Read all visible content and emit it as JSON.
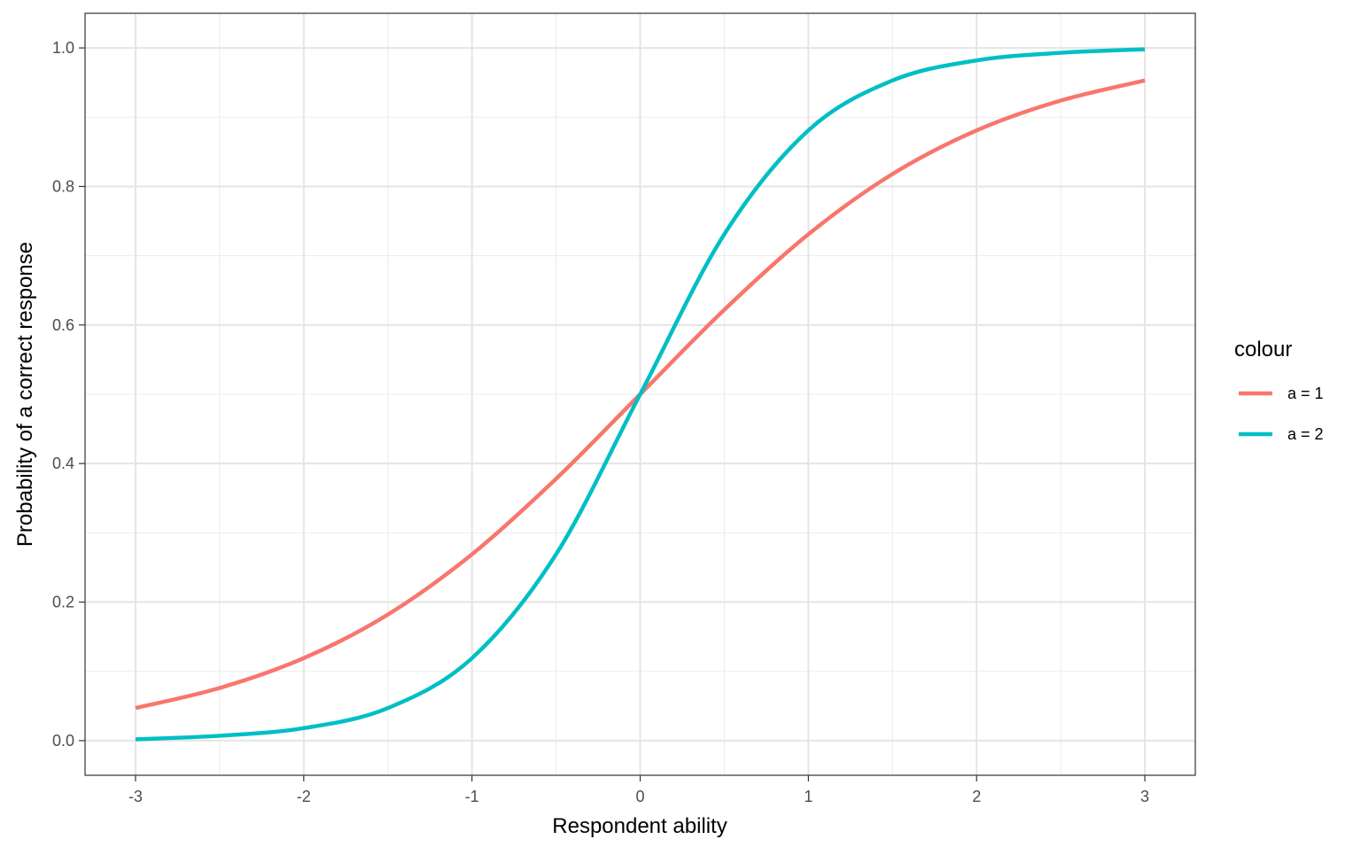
{
  "chart_data": {
    "type": "line",
    "xlabel": "Respondent ability",
    "ylabel": "Probability of a correct response",
    "xlim": [
      -3.3,
      3.3
    ],
    "ylim": [
      -0.05,
      1.05
    ],
    "x_ticks": [
      -3,
      -2,
      -1,
      0,
      1,
      2,
      3
    ],
    "x_tick_labels": [
      "-3",
      "-2",
      "-1",
      "0",
      "1",
      "2",
      "3"
    ],
    "y_ticks": [
      0.0,
      0.2,
      0.4,
      0.6,
      0.8,
      1.0
    ],
    "y_tick_labels": [
      "0.0",
      "0.2",
      "0.4",
      "0.6",
      "0.8",
      "1.0"
    ],
    "grid": true,
    "legend": {
      "title": "colour",
      "placement": "right"
    },
    "x": [
      -3.0,
      -2.5,
      -2.0,
      -1.5,
      -1.0,
      -0.5,
      0.0,
      0.5,
      1.0,
      1.5,
      2.0,
      2.5,
      3.0
    ],
    "series": [
      {
        "name": "a = 1",
        "color": "#F8766D",
        "values": [
          0.047,
          0.076,
          0.119,
          0.182,
          0.269,
          0.378,
          0.5,
          0.622,
          0.731,
          0.818,
          0.881,
          0.924,
          0.953
        ]
      },
      {
        "name": "a = 2",
        "color": "#00BFC4",
        "values": [
          0.002,
          0.007,
          0.018,
          0.047,
          0.119,
          0.269,
          0.5,
          0.731,
          0.881,
          0.953,
          0.982,
          0.993,
          0.998
        ]
      }
    ]
  }
}
